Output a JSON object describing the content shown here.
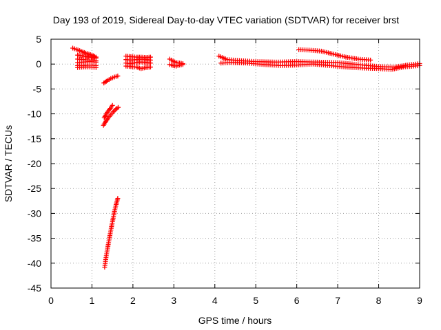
{
  "chart_data": {
    "type": "scatter",
    "title": "Day 193 of 2019, Sidereal Day-to-day VTEC variation (SDTVAR) for receiver brst",
    "xlabel": "GPS time / hours",
    "ylabel": "SDTVAR / TECUs",
    "xlim": [
      0,
      9
    ],
    "ylim": [
      -45,
      5
    ],
    "xticks": [
      0,
      1,
      2,
      3,
      4,
      5,
      6,
      7,
      8,
      9
    ],
    "yticks": [
      5,
      0,
      -5,
      -10,
      -15,
      -20,
      -25,
      -30,
      -35,
      -40,
      -45
    ],
    "grid": true,
    "marker": "+",
    "color": "#ff0000",
    "segments": [
      {
        "x": [
          0.53,
          0.7,
          0.85,
          1.0,
          1.1
        ],
        "y": [
          3.2,
          2.7,
          2.2,
          1.8,
          1.4
        ]
      },
      {
        "x": [
          0.65,
          0.8,
          0.95,
          1.1
        ],
        "y": [
          1.8,
          1.6,
          1.4,
          1.2
        ]
      },
      {
        "x": [
          0.65,
          0.8,
          0.95,
          1.1
        ],
        "y": [
          1.0,
          0.9,
          0.8,
          0.7
        ]
      },
      {
        "x": [
          0.65,
          0.8,
          0.95,
          1.1
        ],
        "y": [
          0.3,
          0.4,
          0.5,
          0.4
        ]
      },
      {
        "x": [
          0.65,
          0.8,
          0.95,
          1.1
        ],
        "y": [
          -0.3,
          -0.3,
          -0.2,
          -0.3
        ]
      },
      {
        "x": [
          0.65,
          0.8,
          0.95,
          1.1
        ],
        "y": [
          -0.7,
          -0.6,
          -0.6,
          -0.7
        ]
      },
      {
        "x": [
          1.29,
          1.38,
          1.46,
          1.55,
          1.63
        ],
        "y": [
          -3.8,
          -3.3,
          -2.9,
          -2.6,
          -2.4
        ]
      },
      {
        "x": [
          1.3,
          1.35,
          1.4,
          1.45,
          1.5
        ],
        "y": [
          -10.8,
          -10.0,
          -9.4,
          -8.9,
          -8.3
        ]
      },
      {
        "x": [
          1.28,
          1.34,
          1.4,
          1.46,
          1.52,
          1.58,
          1.64
        ],
        "y": [
          -12.3,
          -11.5,
          -10.8,
          -10.2,
          -9.6,
          -9.1,
          -8.7
        ]
      },
      {
        "x": [
          1.31,
          1.35,
          1.39,
          1.43,
          1.47,
          1.51,
          1.55,
          1.59,
          1.63
        ],
        "y": [
          -40.8,
          -38.5,
          -36.6,
          -34.8,
          -33.0,
          -31.3,
          -29.6,
          -28.2,
          -27.0
        ]
      },
      {
        "x": [
          1.83,
          1.95,
          2.08,
          2.2,
          2.32,
          2.43
        ],
        "y": [
          1.6,
          1.5,
          1.4,
          1.4,
          1.3,
          1.4
        ]
      },
      {
        "x": [
          1.83,
          1.95,
          2.08,
          2.2,
          2.32,
          2.43
        ],
        "y": [
          0.9,
          0.8,
          0.9,
          1.0,
          0.9,
          0.8
        ]
      },
      {
        "x": [
          1.83,
          1.95,
          2.08,
          2.2,
          2.32,
          2.43
        ],
        "y": [
          0.2,
          0.1,
          0.3,
          0.4,
          0.3,
          0.2
        ]
      },
      {
        "x": [
          1.83,
          1.95,
          2.08,
          2.2,
          2.32,
          2.43
        ],
        "y": [
          -0.4,
          -0.5,
          -0.6,
          -0.9,
          -0.7,
          -0.6
        ]
      },
      {
        "x": [
          2.9,
          2.98,
          3.06,
          3.14,
          3.22
        ],
        "y": [
          1.0,
          0.6,
          0.3,
          0.2,
          0.1
        ]
      },
      {
        "x": [
          2.9,
          2.98,
          3.06,
          3.14,
          3.22
        ],
        "y": [
          -0.1,
          -0.3,
          -0.4,
          -0.2,
          -0.1
        ]
      },
      {
        "x": [
          4.1,
          4.3,
          4.6,
          5.0,
          5.5,
          6.0,
          6.5,
          7.0,
          7.5,
          8.0,
          8.4,
          8.7,
          9.0
        ],
        "y": [
          1.6,
          0.9,
          0.7,
          0.5,
          0.4,
          0.5,
          0.4,
          0.3,
          -0.1,
          -0.5,
          -0.6,
          -0.2,
          0.1
        ]
      },
      {
        "x": [
          4.15,
          4.4,
          4.8,
          5.2,
          5.6,
          6.0,
          6.4,
          6.8,
          7.2,
          7.6,
          8.0,
          8.3,
          8.6,
          9.0
        ],
        "y": [
          0.2,
          0.3,
          0.2,
          -0.1,
          -0.3,
          -0.2,
          0.0,
          -0.3,
          -0.6,
          -0.8,
          -0.9,
          -1.1,
          -0.6,
          -0.3
        ]
      },
      {
        "x": [
          6.05,
          6.3,
          6.6,
          6.9,
          7.2,
          7.5,
          7.8
        ],
        "y": [
          2.9,
          2.8,
          2.6,
          2.0,
          1.4,
          1.0,
          0.8
        ]
      }
    ]
  }
}
